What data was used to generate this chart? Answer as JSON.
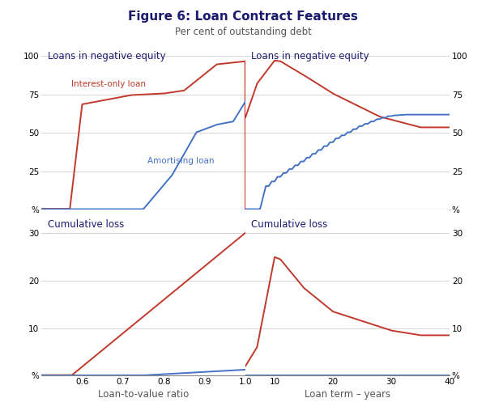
{
  "title": "Figure 6: Loan Contract Features",
  "subtitle": "Per cent of outstanding debt",
  "title_color": "#1a1a6e",
  "subtitle_color": "#555555",
  "red_color": "#c0392b",
  "blue_color": "#4472c4",
  "grid_color": "#cccccc",
  "border_color": "#888888",
  "panel_labels": {
    "tl": "Loans in negative equity",
    "tr": "Loans in negative equity",
    "bl": "Cumulative loss",
    "br": "Cumulative loss"
  },
  "tl_xlabel": "Loan-to-value ratio",
  "tr_xlabel": "Loan term – years",
  "annotation_io": "Interest-only loan",
  "annotation_am": "Amortising loan"
}
